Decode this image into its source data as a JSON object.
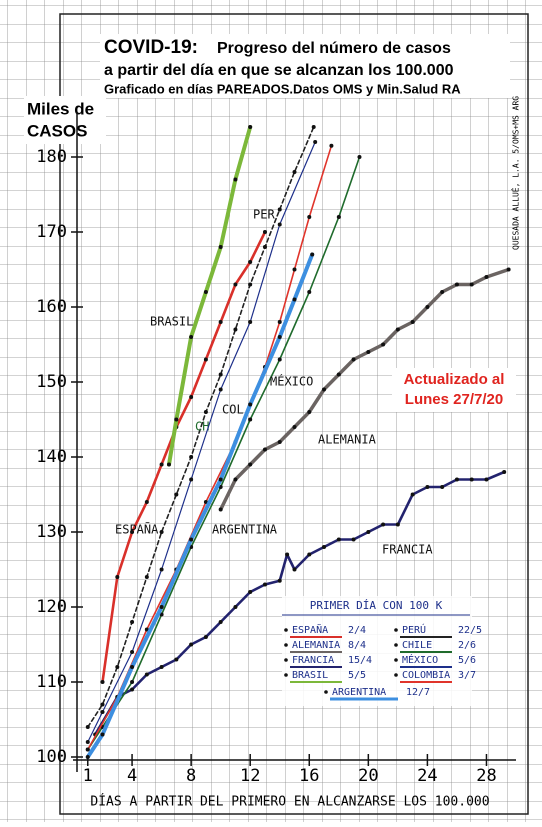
{
  "chart_data": {
    "type": "line",
    "title": "COVID-19:",
    "title_rest": "Progreso del número de casos",
    "title_line2": "a partir del día en que se alcanzan los 100.000",
    "subtitle": "Graficado en días PAREADOS.Datos OMS y Min.Salud RA",
    "y_label_1": "Miles de",
    "y_label_2": "CASOS",
    "x_label": "DÍAS A PARTIR DEL PRIMERO EN ALCANZARSE LOS 100.000",
    "annotation_1": "Actualizado al",
    "annotation_2": "Lunes 27/7/20",
    "side_note": "QUESADA ALLUÉ, L.A. 5/OMS+MS ARG",
    "legend_title": "PRIMER DÍA CON 100 K",
    "xlim": [
      0,
      30
    ],
    "xticks": [
      1,
      4,
      8,
      12,
      16,
      20,
      24,
      28
    ],
    "ylim": [
      98,
      186
    ],
    "yticks": [
      100,
      110,
      120,
      130,
      140,
      150,
      160,
      170,
      180
    ],
    "series": [
      {
        "name": "ESPAÑA",
        "first_day": "2/4",
        "color": "#d9302a",
        "width": 2.6,
        "x": [
          2,
          3,
          4,
          5,
          6,
          7,
          8,
          9,
          10,
          11,
          12,
          13
        ],
        "values": [
          110,
          124,
          130,
          134,
          139,
          144,
          148,
          153,
          158,
          163,
          166,
          170
        ]
      },
      {
        "name": "ALEMANIA",
        "first_day": "8/4",
        "color": "#6b6462",
        "width": 3.5,
        "x": [
          10,
          11,
          12,
          13,
          14,
          15,
          16,
          17,
          18,
          19,
          20,
          21,
          22,
          23,
          24,
          25,
          26,
          27,
          28,
          29.5
        ],
        "values": [
          133,
          137,
          139,
          141,
          142,
          144,
          146,
          149,
          151,
          153,
          154,
          155,
          157,
          158,
          160,
          162,
          163,
          163,
          164,
          165
        ]
      },
      {
        "name": "FRANCIA",
        "first_day": "15/4",
        "color": "#23236e",
        "width": 2.6,
        "x": [
          1.5,
          3,
          4,
          5,
          6,
          7,
          8,
          9,
          10,
          11,
          12,
          13,
          14,
          14.5,
          15,
          16,
          17,
          18,
          19,
          20,
          21,
          22,
          23,
          24,
          25,
          26,
          27,
          28,
          29.2
        ],
        "values": [
          103,
          108,
          109,
          111,
          112,
          113,
          115,
          116,
          118,
          120,
          122,
          123,
          123.5,
          127,
          125,
          127,
          128,
          129,
          129,
          130,
          131,
          131,
          135,
          136,
          136,
          137,
          137,
          137,
          138
        ]
      },
      {
        "name": "BRASIL",
        "first_day": "5/5",
        "color": "#7cb83a",
        "width": 4,
        "x": [
          6.5,
          7,
          8,
          9,
          10,
          11,
          12
        ],
        "values": [
          139,
          145,
          156,
          162,
          168,
          177,
          184
        ]
      },
      {
        "name": "PERÚ",
        "plot_label": "PER",
        "first_day": "22/5",
        "color": "#222222",
        "width": 1.6,
        "dashed": true,
        "x": [
          1,
          2,
          3,
          4,
          5,
          6,
          7,
          8,
          9,
          10,
          11,
          12,
          13,
          14,
          15,
          16.3
        ],
        "values": [
          104,
          107,
          112,
          118,
          124,
          130,
          135,
          140,
          146,
          151,
          157,
          163,
          168,
          173,
          178,
          184
        ]
      },
      {
        "name": "CHILE",
        "plot_label": "CH",
        "first_day": "2/6",
        "color": "#1f6b2c",
        "width": 1.6,
        "x": [
          1,
          2,
          4,
          6,
          8,
          10,
          12,
          14,
          16,
          18,
          19.4
        ],
        "values": [
          101,
          104,
          110,
          119,
          128,
          136,
          145,
          153,
          162,
          172,
          180
        ]
      },
      {
        "name": "MÉXICO",
        "first_day": "5/6",
        "color": "#1d2f8a",
        "width": 1.2,
        "x": [
          1,
          2,
          4,
          6,
          8,
          10,
          12,
          14,
          16.4
        ],
        "values": [
          102,
          106,
          114,
          125,
          137,
          149,
          158,
          171,
          182
        ]
      },
      {
        "name": "COLOMBIA",
        "plot_label": "COL",
        "first_day": "3/7",
        "color": "#e0342b",
        "width": 1.6,
        "x": [
          1,
          3,
          5,
          7,
          9,
          11,
          13,
          14,
          15,
          16,
          17.5
        ],
        "values": [
          101,
          108,
          117,
          125,
          134,
          142,
          152,
          158,
          165,
          172,
          181.5
        ]
      },
      {
        "name": "ARGENTINA",
        "first_day": "12/7",
        "color": "#3d8fe0",
        "width": 4,
        "x": [
          1,
          2,
          4,
          6,
          8,
          10,
          12,
          14,
          15,
          16.2
        ],
        "values": [
          100,
          103,
          112,
          120,
          129,
          137,
          147,
          156,
          161,
          167
        ]
      }
    ]
  }
}
